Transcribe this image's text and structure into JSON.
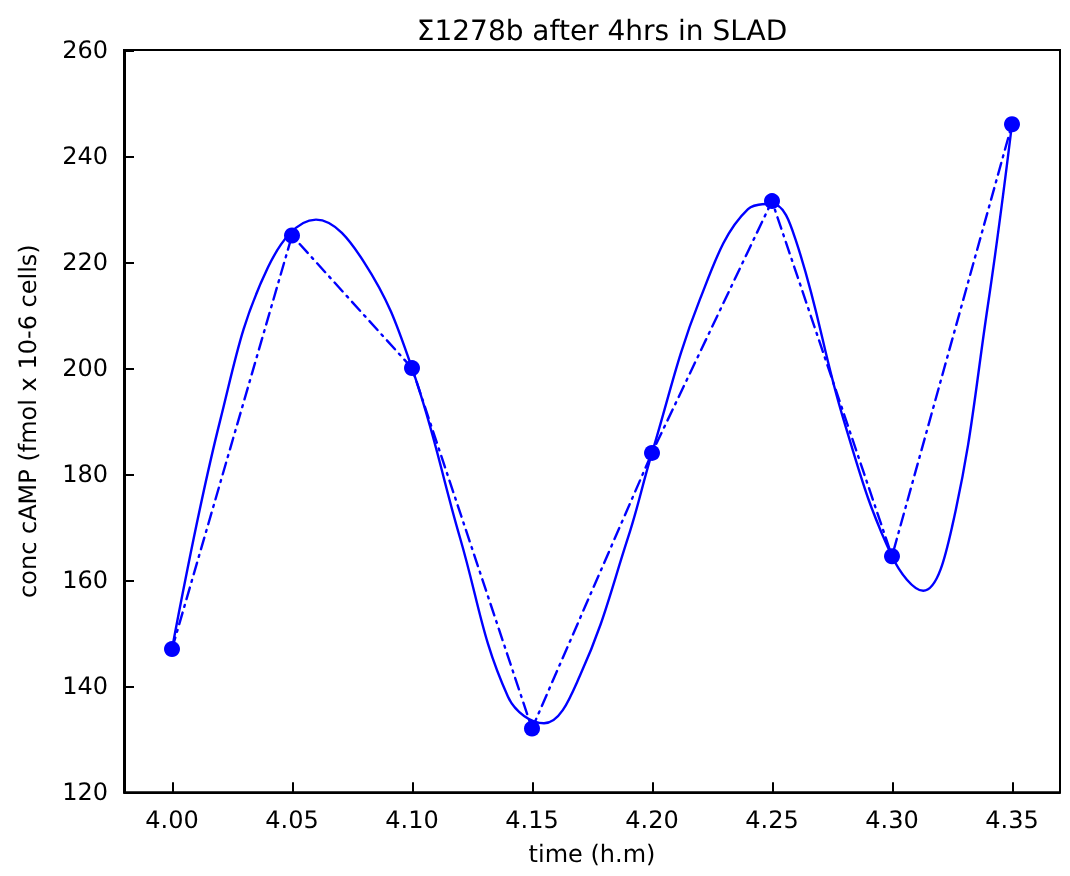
{
  "chart_data": {
    "type": "line",
    "title": "Σ1278b after 4hrs in SLAD",
    "xlabel": "time (h.m)",
    "ylabel": "conc cAMP (fmol x 10-6 cells)",
    "xlim": [
      3.98,
      4.37
    ],
    "xticks": [
      {
        "value": 4.0,
        "label": "4.00"
      },
      {
        "value": 4.05,
        "label": "4.05"
      },
      {
        "value": 4.1,
        "label": "4.10"
      },
      {
        "value": 4.15,
        "label": "4.15"
      },
      {
        "value": 4.2,
        "label": "4.20"
      },
      {
        "value": 4.25,
        "label": "4.25"
      },
      {
        "value": 4.3,
        "label": "4.30"
      },
      {
        "value": 4.35,
        "label": "4.35"
      }
    ],
    "ylim": [
      120,
      260
    ],
    "yticks": [
      120,
      140,
      160,
      180,
      200,
      220,
      240,
      260
    ],
    "grid": false,
    "series": [
      {
        "color": "#0000ff",
        "line_style": "dashed",
        "marker": "circle",
        "x": [
          4.0,
          4.05,
          4.1,
          4.15,
          4.2,
          4.25,
          4.3,
          4.35
        ],
        "values": [
          147,
          225,
          200,
          132,
          184,
          231.5,
          164.5,
          246
        ]
      },
      {
        "color": "#0000ff",
        "line_style": "solid",
        "marker": "none",
        "x": [
          4.0,
          4.02,
          4.04,
          4.06,
          4.08,
          4.1,
          4.12,
          4.14,
          4.155,
          4.17,
          4.19,
          4.2,
          4.22,
          4.24,
          4.25,
          4.26,
          4.28,
          4.3,
          4.313,
          4.325,
          4.34,
          4.35
        ],
        "values": [
          147,
          190,
          219,
          228,
          220,
          200,
          168,
          138,
          133,
          142,
          168,
          184,
          213,
          230,
          231,
          224,
          190,
          164.5,
          158,
          170,
          212,
          246
        ]
      }
    ]
  }
}
